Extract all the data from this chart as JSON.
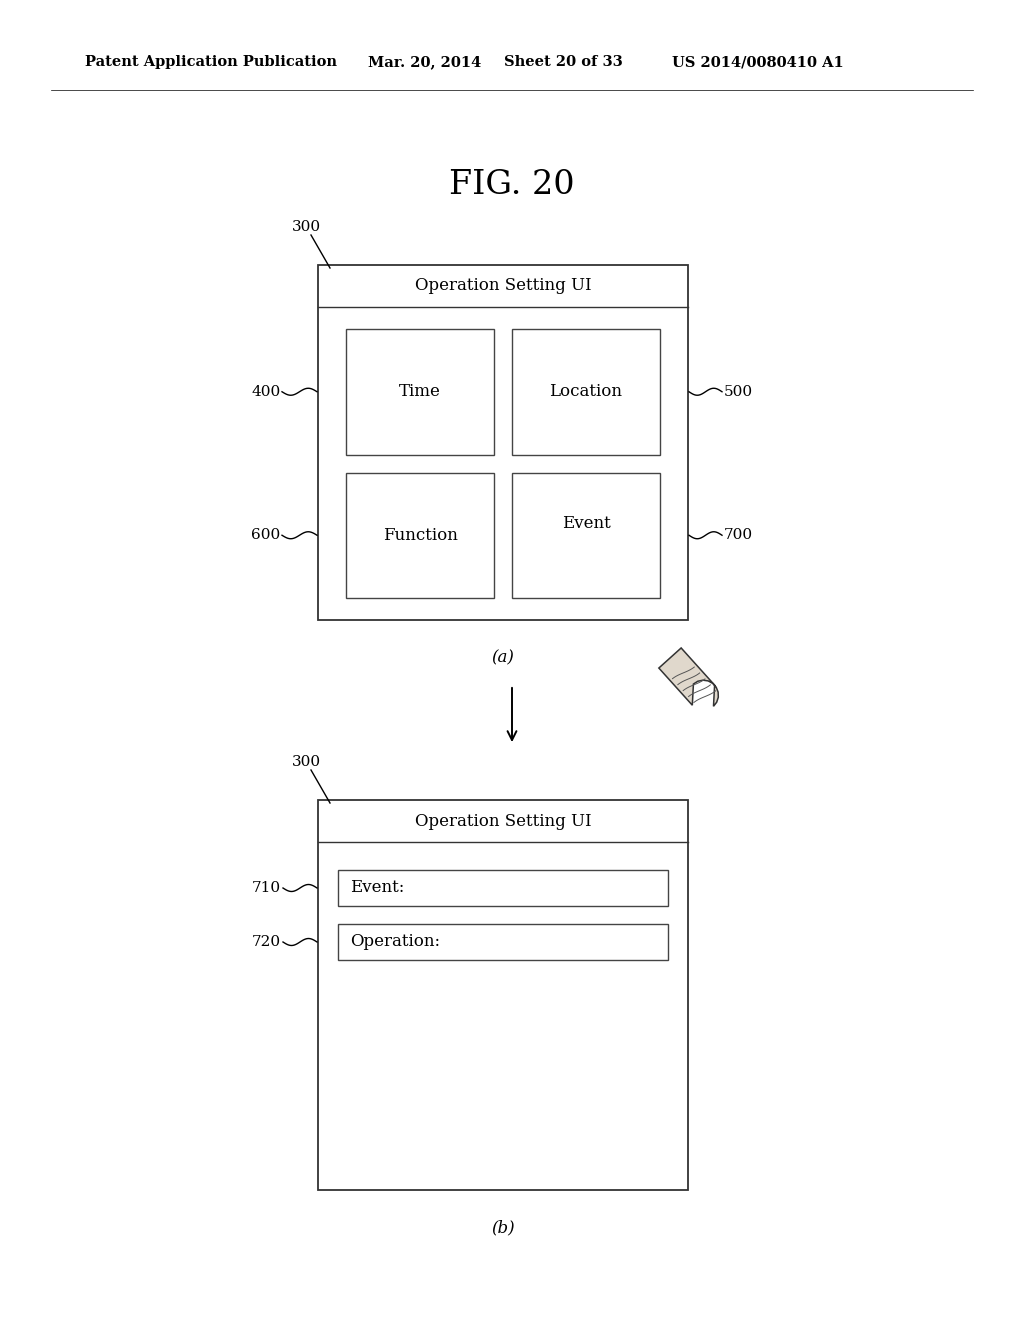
{
  "background_color": "#ffffff",
  "header_text": "Patent Application Publication",
  "header_date": "Mar. 20, 2014",
  "header_sheet": "Sheet 20 of 33",
  "header_patent": "US 2014/0080410 A1",
  "fig_label": "FIG. 20",
  "diagram_a": {
    "label": "(a)",
    "ref_300": "300",
    "ref_400": "400",
    "ref_500": "500",
    "ref_600": "600",
    "ref_700": "700",
    "title_bar": "Operation Setting UI",
    "box_time": "Time",
    "box_location": "Location",
    "box_function": "Function",
    "box_event": "Event"
  },
  "diagram_b": {
    "label": "(b)",
    "ref_300": "300",
    "ref_710": "710",
    "ref_720": "720",
    "title_bar": "Operation Setting UI",
    "field_event": "Event:",
    "field_operation": "Operation:"
  }
}
